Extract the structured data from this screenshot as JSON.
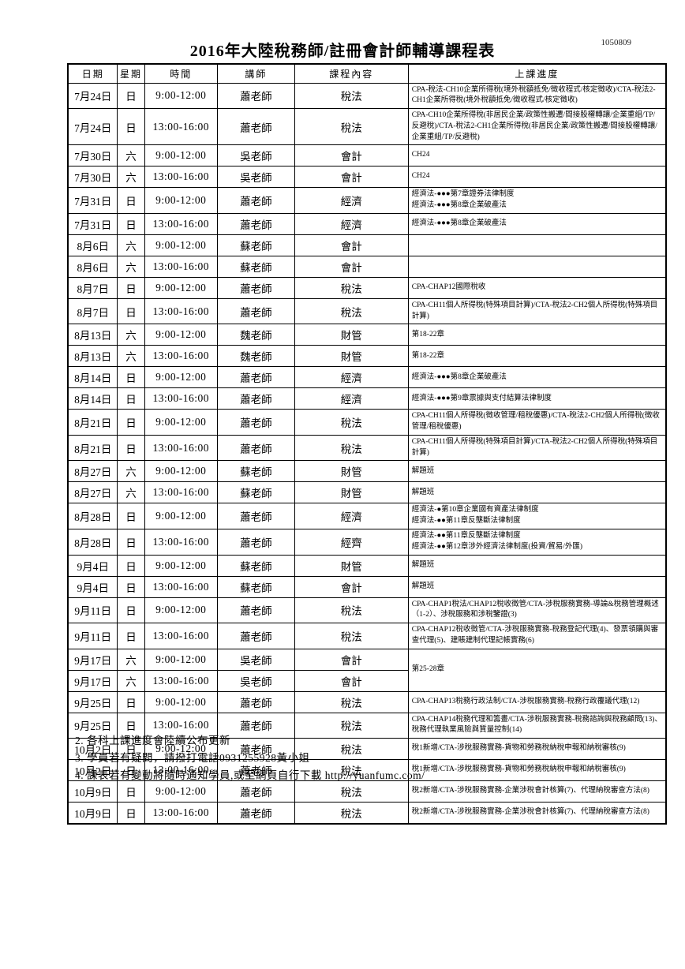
{
  "doc": {
    "title": "2016年大陸稅務師/註冊會計師輔導課程表",
    "doc_number": "1050809",
    "notes": [
      "2. 各科上課進度會陸續公布更新",
      "3. 學員若有疑問，請撥打電話0931255928黃小姐",
      "4. 課表若有變動將隨時通知學員,或至網頁自行下載 http://yuanfumc.com/"
    ]
  },
  "table": {
    "headers": [
      "日期",
      "星期",
      "時間",
      "講師",
      "課程內容",
      "上課進度"
    ],
    "col_widths_pct": [
      8.3,
      4.5,
      12.2,
      12.9,
      19.0,
      43.1
    ],
    "rows": [
      {
        "date": "7月24日",
        "day": "日",
        "time": "9:00-12:00",
        "teacher": "蕭老師",
        "subject": "稅法",
        "progress": [
          "CPA-稅法-CH10企業所得稅(境外稅額抵免/徵收程式/核定徵收)/CTA-稅法2-CH1企業所得稅(境外稅額抵免/徵收程式/核定徵收)"
        ]
      },
      {
        "date": "7月24日",
        "day": "日",
        "time": "13:00-16:00",
        "teacher": "蕭老師",
        "subject": "稅法",
        "progress": [
          "CPA-CH10企業所得稅(非居民企業/政策性搬遷/間接股權轉讓/企業重組/TP/反避稅)/CTA-稅法2-CH1企業所得稅(非居民企業/政策性搬遷/間接股權轉讓/企業重組/TP/反避稅)"
        ]
      },
      {
        "date": "7月30日",
        "day": "六",
        "time": "9:00-12:00",
        "teacher": "吳老師",
        "subject": "會計",
        "progress": [
          "CH24"
        ]
      },
      {
        "date": "7月30日",
        "day": "六",
        "time": "13:00-16:00",
        "teacher": "吳老師",
        "subject": "會計",
        "progress": [
          "CH24"
        ]
      },
      {
        "date": "7月31日",
        "day": "日",
        "time": "9:00-12:00",
        "teacher": "蕭老師",
        "subject": "經濟",
        "progress": [
          "經濟法-●●●第7章證券法律制度",
          "經濟法-●●●第8章企業破產法"
        ]
      },
      {
        "date": "7月31日",
        "day": "日",
        "time": "13:00-16:00",
        "teacher": "蕭老師",
        "subject": "經濟",
        "progress": [
          "經濟法-●●●第8章企業破產法"
        ]
      },
      {
        "date": "8月6日",
        "day": "六",
        "time": "9:00-12:00",
        "teacher": "蘇老師",
        "subject": "會計",
        "progress": []
      },
      {
        "date": "8月6日",
        "day": "六",
        "time": "13:00-16:00",
        "teacher": "蘇老師",
        "subject": "會計",
        "progress": []
      },
      {
        "date": "8月7日",
        "day": "日",
        "time": "9:00-12:00",
        "teacher": "蕭老師",
        "subject": "稅法",
        "progress": [
          "CPA-CHAP12國際稅收"
        ]
      },
      {
        "date": "8月7日",
        "day": "日",
        "time": "13:00-16:00",
        "teacher": "蕭老師",
        "subject": "稅法",
        "progress": [
          "CPA-CH11個人所得稅(特殊項目計算)/CTA-稅法2-CH2個人所得稅(特殊項目計算)"
        ]
      },
      {
        "date": "8月13日",
        "day": "六",
        "time": "9:00-12:00",
        "teacher": "魏老師",
        "subject": "財管",
        "progress": [
          "第18-22章"
        ]
      },
      {
        "date": "8月13日",
        "day": "六",
        "time": "13:00-16:00",
        "teacher": "魏老師",
        "subject": "財管",
        "progress": [
          "第18-22章"
        ]
      },
      {
        "date": "8月14日",
        "day": "日",
        "time": "9:00-12:00",
        "teacher": "蕭老師",
        "subject": "經濟",
        "progress": [
          "經濟法-●●●第8章企業破產法"
        ]
      },
      {
        "date": "8月14日",
        "day": "日",
        "time": "13:00-16:00",
        "teacher": "蕭老師",
        "subject": "經濟",
        "progress": [
          "經濟法-●●●第9章票據與支付結算法律制度"
        ]
      },
      {
        "date": "8月21日",
        "day": "日",
        "time": "9:00-12:00",
        "teacher": "蕭老師",
        "subject": "稅法",
        "progress": [
          "CPA-CH11個人所得稅(徵收管理/租稅優惠)/CTA-稅法2-CH2個人所得稅(徵收管理/租稅優惠)"
        ]
      },
      {
        "date": "8月21日",
        "day": "日",
        "time": "13:00-16:00",
        "teacher": "蕭老師",
        "subject": "稅法",
        "progress": [
          "CPA-CH11個人所得稅(特殊項目計算)/CTA-稅法2-CH2個人所得稅(特殊項目計算)"
        ]
      },
      {
        "date": "8月27日",
        "day": "六",
        "time": "9:00-12:00",
        "teacher": "蘇老師",
        "subject": "財管",
        "progress": [
          "解題班"
        ]
      },
      {
        "date": "8月27日",
        "day": "六",
        "time": "13:00-16:00",
        "teacher": "蘇老師",
        "subject": "財管",
        "progress": [
          "解題班"
        ]
      },
      {
        "date": "8月28日",
        "day": "日",
        "time": "9:00-12:00",
        "teacher": "蕭老師",
        "subject": "經濟",
        "progress": [
          "經濟法-●第10章企業國有資產法律制度",
          "經濟法-●●第11章反壟斷法律制度"
        ]
      },
      {
        "date": "8月28日",
        "day": "日",
        "time": "13:00-16:00",
        "teacher": "蕭老師",
        "subject": "經齊",
        "progress": [
          "經濟法-●●第11章反壟斷法律制度",
          "經濟法-●●第12章涉外經濟法律制度(投資/貿易/外匯)"
        ]
      },
      {
        "date": "9月4日",
        "day": "日",
        "time": "9:00-12:00",
        "teacher": "蘇老師",
        "subject": "財管",
        "progress": [
          "解題班"
        ]
      },
      {
        "date": "9月4日",
        "day": "日",
        "time": "13:00-16:00",
        "teacher": "蘇老師",
        "subject": "會計",
        "progress": [
          "解題班"
        ]
      },
      {
        "date": "9月11日",
        "day": "日",
        "time": "9:00-12:00",
        "teacher": "蕭老師",
        "subject": "稅法",
        "progress": [
          "CPA-CHAP1稅法/CHAP12稅收徵管/CTA-涉稅服務實務-導論&稅務管理概述（1-2）、涉稅服務和涉稅鑒證(3)"
        ]
      },
      {
        "date": "9月11日",
        "day": "日",
        "time": "13:00-16:00",
        "teacher": "蕭老師",
        "subject": "稅法",
        "progress": [
          "CPA-CHAP12稅收徵管/CTA-涉稅服務實務-稅務登記代理(4)、發票領購與審查代理(5)、建賬建制代理記帳實務(6)"
        ]
      },
      {
        "date": "9月17日",
        "day": "六",
        "time": "9:00-12:00",
        "teacher": "吳老師",
        "subject": "會計",
        "progress": [
          "第25-28章"
        ],
        "progress_rowspan": 2
      },
      {
        "date": "9月17日",
        "day": "六",
        "time": "13:00-16:00",
        "teacher": "吳老師",
        "subject": "會計",
        "progress_merged": true
      },
      {
        "date": "9月25日",
        "day": "日",
        "time": "9:00-12:00",
        "teacher": "蕭老師",
        "subject": "稅法",
        "progress": [
          "CPA-CHAP13稅務行政法制/CTA-涉稅服務實務-稅務行政覆議代理(12)"
        ]
      },
      {
        "date": "9月25日",
        "day": "日",
        "time": "13:00-16:00",
        "teacher": "蕭老師",
        "subject": "稅法",
        "progress": [
          "CPA-CHAP14稅務代理和籌畫/CTA-涉稅服務實務-稅務諮詢與稅務顧問(13)、稅務代理執業風險與質量控制(14)"
        ]
      },
      {
        "date": "10月2日",
        "day": "日",
        "time": "9:00-12:00",
        "teacher": "蕭老師",
        "subject": "稅法",
        "progress": [
          "稅1新增/CTA-涉稅服務實務-貨物和勞務稅納稅申報和納稅審核(9)"
        ]
      },
      {
        "date": "10月2日",
        "day": "日",
        "time": "13:00-16:00",
        "teacher": "蕭老師",
        "subject": "稅法",
        "progress": [
          "稅1新增/CTA-涉稅服務實務-貨物和勞務稅納稅申報和納稅審核(9)"
        ]
      },
      {
        "date": "10月9日",
        "day": "日",
        "time": "9:00-12:00",
        "teacher": "蕭老師",
        "subject": "稅法",
        "progress": [
          "稅2新增/CTA-涉稅服務實務-企業涉稅會計核算(7)、代理納稅審查方法(8)"
        ]
      },
      {
        "date": "10月9日",
        "day": "日",
        "time": "13:00-16:00",
        "teacher": "蕭老師",
        "subject": "稅法",
        "progress": [
          "稅2新增/CTA-涉稅服務實務-企業涉稅會計核算(7)、代理納稅審查方法(8)"
        ]
      }
    ]
  }
}
